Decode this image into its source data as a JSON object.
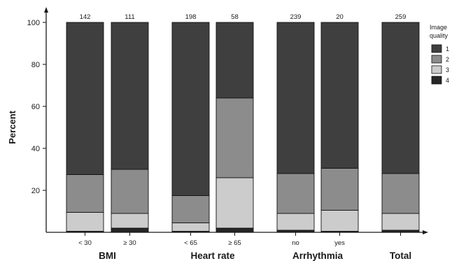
{
  "chart_data": {
    "type": "bar",
    "stacked": true,
    "ylabel": "Percent",
    "ylim": [
      0,
      100
    ],
    "yticks": [
      20,
      40,
      60,
      80,
      100
    ],
    "grid": false,
    "legend": {
      "title": "Image quality",
      "position": "right",
      "entries": [
        "1",
        "2",
        "3",
        "4"
      ]
    },
    "groups": [
      "BMI",
      "Heart rate",
      "Arrhythmia",
      "Total"
    ],
    "bars": [
      {
        "group": "BMI",
        "category": "< 30",
        "total": "142",
        "values": {
          "4": 0.5,
          "3": 9,
          "2": 18,
          "1": 72.5
        }
      },
      {
        "group": "BMI",
        "category": "≥ 30",
        "total": "111",
        "values": {
          "4": 2,
          "3": 7,
          "2": 21,
          "1": 70
        }
      },
      {
        "group": "Heart rate",
        "category": "< 65",
        "total": "198",
        "values": {
          "4": 0.5,
          "3": 4,
          "2": 13,
          "1": 82.5
        }
      },
      {
        "group": "Heart rate",
        "category": "≥ 65",
        "total": "58",
        "values": {
          "4": 2,
          "3": 24,
          "2": 38,
          "1": 36
        }
      },
      {
        "group": "Arrhythmia",
        "category": "no",
        "total": "239",
        "values": {
          "4": 1,
          "3": 8,
          "2": 19,
          "1": 72
        }
      },
      {
        "group": "Arrhythmia",
        "category": "yes",
        "total": "20",
        "values": {
          "4": 0.5,
          "3": 10,
          "2": 20,
          "1": 69.5
        }
      },
      {
        "group": "Total",
        "category": "",
        "total": "259",
        "values": {
          "4": 1,
          "3": 8,
          "2": 19,
          "1": 72
        }
      }
    ],
    "colors": {
      "1": "#3f3f3f",
      "2": "#8c8c8c",
      "3": "#cccccc",
      "4": "#262626"
    }
  }
}
